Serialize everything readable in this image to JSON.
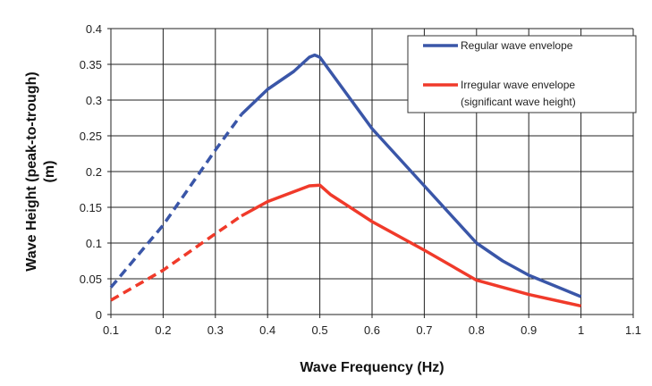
{
  "chart_data": {
    "type": "line",
    "title": "",
    "xlabel": "Wave Frequency (Hz)",
    "ylabel_lines": [
      "Wave Height (peak-to-trough)",
      "(m)"
    ],
    "xlim": [
      0.1,
      1.1
    ],
    "ylim": [
      0,
      0.4
    ],
    "xticks": [
      "0.1",
      "0.2",
      "0.3",
      "0.4",
      "0.5",
      "0.6",
      "0.7",
      "0.8",
      "0.9",
      "1",
      "1.1"
    ],
    "yticks": [
      "0",
      "0.05",
      "0.1",
      "0.15",
      "0.2",
      "0.25",
      "0.3",
      "0.35",
      "0.4"
    ],
    "grid": true,
    "legend_position": "top-right",
    "series": [
      {
        "name": "Regular wave envelope",
        "legend_lines": [
          "Regular wave envelope"
        ],
        "color": "#3a56a8",
        "dashed_segment": {
          "x": [
            0.1,
            0.2,
            0.3,
            0.35
          ],
          "y": [
            0.038,
            0.125,
            0.23,
            0.28
          ]
        },
        "solid_segment": {
          "x": [
            0.35,
            0.4,
            0.45,
            0.48,
            0.49,
            0.5,
            0.55,
            0.6,
            0.7,
            0.8,
            0.85,
            0.9,
            1.0
          ],
          "y": [
            0.28,
            0.315,
            0.34,
            0.36,
            0.363,
            0.36,
            0.31,
            0.26,
            0.18,
            0.1,
            0.075,
            0.055,
            0.025
          ]
        }
      },
      {
        "name": "Irregular wave envelope (significant wave height)",
        "legend_lines": [
          "Irregular wave envelope",
          "(significant wave height)"
        ],
        "color": "#f03a2a",
        "dashed_segment": {
          "x": [
            0.1,
            0.2,
            0.3,
            0.35
          ],
          "y": [
            0.02,
            0.062,
            0.113,
            0.138
          ]
        },
        "solid_segment": {
          "x": [
            0.35,
            0.4,
            0.48,
            0.5,
            0.52,
            0.6,
            0.7,
            0.8,
            0.9,
            1.0
          ],
          "y": [
            0.138,
            0.158,
            0.18,
            0.181,
            0.168,
            0.13,
            0.09,
            0.048,
            0.028,
            0.012
          ]
        }
      }
    ]
  }
}
